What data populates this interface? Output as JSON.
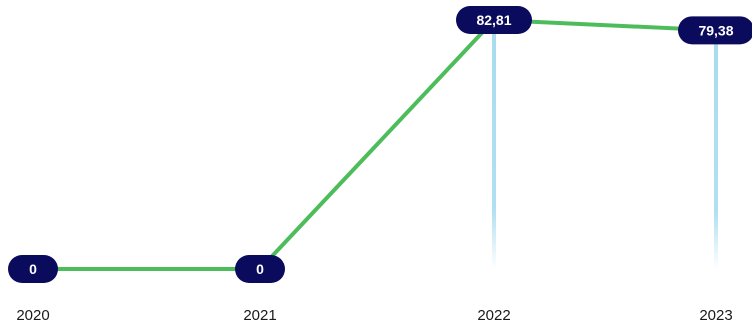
{
  "chart_data": {
    "type": "line",
    "categories": [
      "2020",
      "2021",
      "2022",
      "2023"
    ],
    "series": [
      {
        "values": [
          0,
          0,
          82.81,
          79.38
        ],
        "value_labels": [
          "0",
          "0",
          "82,81",
          "79,38"
        ]
      }
    ],
    "ylim": [
      0,
      82.81
    ],
    "grid": false,
    "legend": "none"
  },
  "colors": {
    "line": "#4cbd5a",
    "label_bg": "#0b0b5e",
    "label_text": "#ffffff",
    "drop_line": "#a9dcf0",
    "tick_text": "#1a1a1a"
  }
}
